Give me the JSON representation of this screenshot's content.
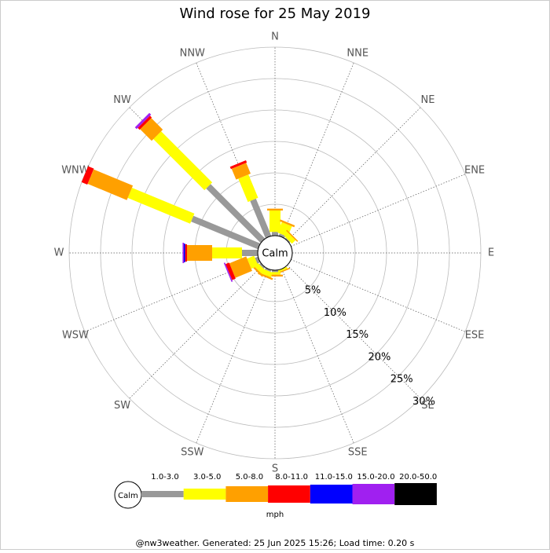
{
  "chart_data": {
    "type": "windrose",
    "title": "Wind rose for 25 May 2019",
    "categories": [
      "N",
      "NNE",
      "NE",
      "ENE",
      "E",
      "ESE",
      "SE",
      "SSE",
      "S",
      "SSW",
      "SW",
      "WSW",
      "W",
      "WNW",
      "NW",
      "NNW"
    ],
    "series": [
      {
        "name": "1.0-3.0",
        "color": "#999999",
        "values": [
          0.6,
          0.4,
          0.2,
          0,
          0,
          0,
          0,
          0,
          0.3,
          0.3,
          0.3,
          0.5,
          2.5,
          11.5,
          12.25,
          6.4
        ]
      },
      {
        "name": "3.0-5.0",
        "color": "#ffff00",
        "values": [
          3.4,
          1.8,
          0.8,
          0,
          0,
          0,
          0,
          0.3,
          0.4,
          0.8,
          0.8,
          1.2,
          4.75,
          10.75,
          11.5,
          4
        ]
      },
      {
        "name": "5.0-8.0",
        "color": "#ffa000",
        "values": [
          0.3,
          0.3,
          0.2,
          0,
          0,
          0,
          0,
          0.2,
          0.3,
          0.3,
          0.3,
          2.9,
          4,
          6.75,
          2.6,
          1.85
        ]
      },
      {
        "name": "8.0-11.0",
        "color": "#ff0000",
        "values": [
          0,
          0,
          0,
          0,
          0,
          0,
          0,
          0,
          0,
          0,
          0,
          0.6,
          0.3,
          1,
          0.4,
          0.4
        ]
      },
      {
        "name": "11.0-15.0",
        "color": "#0000ff",
        "values": [
          0,
          0,
          0,
          0,
          0,
          0,
          0,
          0,
          0,
          0,
          0,
          0,
          0.2,
          0,
          0,
          0
        ]
      },
      {
        "name": "15.0-20.0",
        "color": "#a020f0",
        "values": [
          0,
          0,
          0,
          0,
          0,
          0,
          0,
          0,
          0,
          0,
          0,
          0.2,
          0.2,
          0,
          0.4,
          0
        ]
      },
      {
        "name": "20.0-50.0",
        "color": "#000000",
        "values": [
          0,
          0,
          0,
          0,
          0,
          0,
          0,
          0,
          0,
          0,
          0,
          0,
          0,
          0,
          0,
          0
        ]
      }
    ],
    "rlim": [
      0,
      30
    ],
    "rticks": [
      {
        "value": 5,
        "label": "5%"
      },
      {
        "value": 10,
        "label": "10%"
      },
      {
        "value": 15,
        "label": "15%"
      },
      {
        "value": 20,
        "label": "20%"
      },
      {
        "value": 25,
        "label": "25%"
      },
      {
        "value": 30,
        "label": "30%"
      }
    ],
    "center_label": "Calm",
    "legend_title": "mph"
  },
  "footer": "@nw3weather. Generated: 25 Jun 2025 15:26; Load time: 0.20 s"
}
